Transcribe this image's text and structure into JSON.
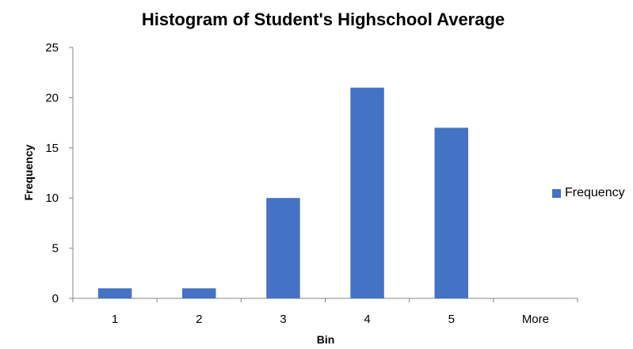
{
  "chart_data": {
    "type": "bar",
    "title": "Histogram of Student's Highschool Average",
    "xlabel": "Bin",
    "ylabel": "Frequency",
    "categories": [
      "1",
      "2",
      "3",
      "4",
      "5",
      "More"
    ],
    "series": [
      {
        "name": "Frequency",
        "values": [
          1,
          1,
          10,
          21,
          17,
          0
        ]
      }
    ],
    "ylim": [
      0,
      25
    ],
    "yticks": [
      0,
      5,
      10,
      15,
      20,
      25
    ],
    "grid": false,
    "legend": "right",
    "bar_color": "#4472C4"
  }
}
